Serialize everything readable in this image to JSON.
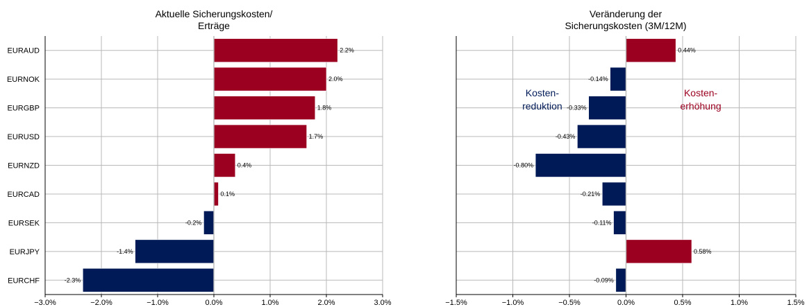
{
  "colors": {
    "positive": "#9b0020",
    "negative": "#001a57",
    "grid": "#b8b8b8",
    "axis": "#000000"
  },
  "chart_data": [
    {
      "type": "bar",
      "orientation": "horizontal",
      "title_lines": [
        "Aktuelle Sicherungskosten/",
        "Erträge"
      ],
      "categories": [
        "EURAUD",
        "EURNOK",
        "EURGBP",
        "EURUSD",
        "EURNZD",
        "EURCAD",
        "EURSEK",
        "EURJPY",
        "EURCHF"
      ],
      "values": [
        2.2,
        2.0,
        1.8,
        1.65,
        0.38,
        0.08,
        -0.18,
        -1.4,
        -2.33
      ],
      "value_labels": [
        "2.2%",
        "2.0%",
        "1.8%",
        "1.7%",
        "0.4%",
        "0.1%",
        "-0.2%",
        "-1.4%",
        "-2.3%"
      ],
      "xlim": [
        -3.0,
        3.0
      ],
      "xticks": [
        -3.0,
        -2.0,
        -1.0,
        0.0,
        1.0,
        2.0,
        3.0
      ],
      "xtick_labels": [
        "−3.0%",
        "−2.0%",
        "−1.0%",
        "0.0%",
        "1.0%",
        "2.0%",
        "3.0%"
      ],
      "grid": true
    },
    {
      "type": "bar",
      "orientation": "horizontal",
      "title_lines": [
        "Veränderung der",
        "Sicherungskosten (3M/12M)"
      ],
      "categories": [
        "EURAUD",
        "EURNOK",
        "EURGBP",
        "EURUSD",
        "EURNZD",
        "EURCAD",
        "EURSEK",
        "EURJPY",
        "EURCHF"
      ],
      "values": [
        0.44,
        -0.14,
        -0.33,
        -0.43,
        -0.8,
        -0.21,
        -0.11,
        0.58,
        -0.09
      ],
      "value_labels": [
        "0.44%",
        "-0.14%",
        "-0.33%",
        "-0.43%",
        "-0.80%",
        "-0.21%",
        "-0.11%",
        "0.58%",
        "-0.09%"
      ],
      "xlim": [
        -1.5,
        1.5
      ],
      "xticks": [
        -1.5,
        -1.0,
        -0.5,
        0.0,
        0.5,
        1.0,
        1.5
      ],
      "xtick_labels": [
        "−1.5%",
        "−1.0%",
        "−0.5%",
        "0.0%",
        "0.5%",
        "1.0%",
        "1.5%"
      ],
      "grid": true,
      "annotations": {
        "negative": [
          "Kosten-",
          "reduktion"
        ],
        "positive": [
          "Kosten-",
          "erhöhung"
        ]
      }
    }
  ]
}
